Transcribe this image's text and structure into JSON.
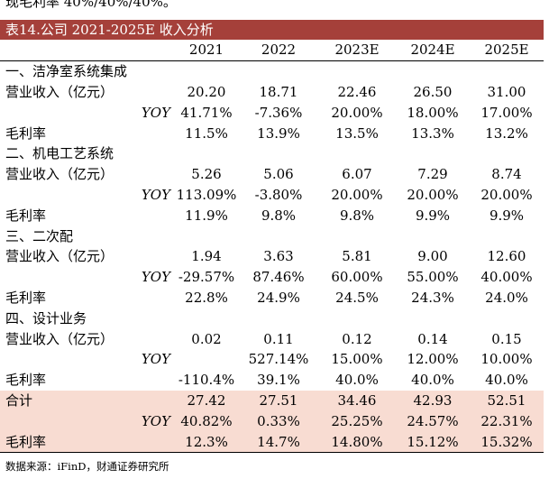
{
  "top_text": "现毛利率 40%/40%/40%。",
  "title": "表14.公司 2021-2025E 收入分析",
  "years": [
    "2021",
    "2022",
    "2023E",
    "2024E",
    "2025E"
  ],
  "rows": [
    {
      "type": "section",
      "label": "一、洁净室系统集成",
      "values": [
        "",
        "",
        "",
        "",
        ""
      ]
    },
    {
      "type": "revenue",
      "label": "营业收入（亿元）",
      "values": [
        "20.20",
        "18.71",
        "22.46",
        "26.50",
        "31.00"
      ]
    },
    {
      "type": "yoy",
      "label": "YOY",
      "values": [
        "41.71%",
        "-7.36%",
        "20.00%",
        "18.00%",
        "17.00%"
      ]
    },
    {
      "type": "margin",
      "label": "毛利率",
      "values": [
        "11.5%",
        "13.9%",
        "13.5%",
        "13.3%",
        "13.2%"
      ]
    },
    {
      "type": "section",
      "label": "二、机电工艺系统",
      "values": [
        "",
        "",
        "",
        "",
        ""
      ]
    },
    {
      "type": "revenue",
      "label": "营业收入（亿元）",
      "values": [
        "5.26",
        "5.06",
        "6.07",
        "7.29",
        "8.74"
      ]
    },
    {
      "type": "yoy",
      "label": "YOY",
      "values": [
        "113.09%",
        "-3.80%",
        "20.00%",
        "20.00%",
        "20.00%"
      ]
    },
    {
      "type": "margin",
      "label": "毛利率",
      "values": [
        "11.9%",
        "9.8%",
        "9.8%",
        "9.9%",
        "9.9%"
      ]
    },
    {
      "type": "section",
      "label": "三、二次配",
      "values": [
        "",
        "",
        "",
        "",
        ""
      ]
    },
    {
      "type": "revenue",
      "label": "营业收入（亿元）",
      "values": [
        "1.94",
        "3.63",
        "5.81",
        "9.00",
        "12.60"
      ]
    },
    {
      "type": "yoy",
      "label": "YOY",
      "values": [
        "-29.57%",
        "87.46%",
        "60.00%",
        "55.00%",
        "40.00%"
      ]
    },
    {
      "type": "margin",
      "label": "毛利率",
      "values": [
        "22.8%",
        "24.9%",
        "24.5%",
        "24.3%",
        "24.0%"
      ]
    },
    {
      "type": "section",
      "label": "四、设计业务",
      "values": [
        "",
        "",
        "",
        "",
        ""
      ]
    },
    {
      "type": "revenue",
      "label": "营业收入（亿元）",
      "values": [
        "0.02",
        "0.11",
        "0.12",
        "0.14",
        "0.15"
      ]
    },
    {
      "type": "yoy",
      "label": "YOY",
      "values": [
        "",
        "527.14%",
        "15.00%",
        "12.00%",
        "10.00%"
      ]
    },
    {
      "type": "margin",
      "label": "毛利率",
      "values": [
        "-110.4%",
        "39.1%",
        "40.0%",
        "40.0%",
        "40.0%"
      ]
    },
    {
      "type": "total",
      "label": "合计",
      "values": [
        "27.42",
        "27.51",
        "34.46",
        "42.93",
        "52.51"
      ]
    },
    {
      "type": "total-yoy",
      "label": "YOY",
      "values": [
        "40.82%",
        "0.33%",
        "25.25%",
        "24.57%",
        "22.31%"
      ]
    },
    {
      "type": "total-margin",
      "label": "毛利率",
      "values": [
        "12.3%",
        "14.7%",
        "14.80%",
        "15.12%",
        "15.32%"
      ]
    }
  ],
  "source": "数据来源：iFinD，财通证券研究所"
}
